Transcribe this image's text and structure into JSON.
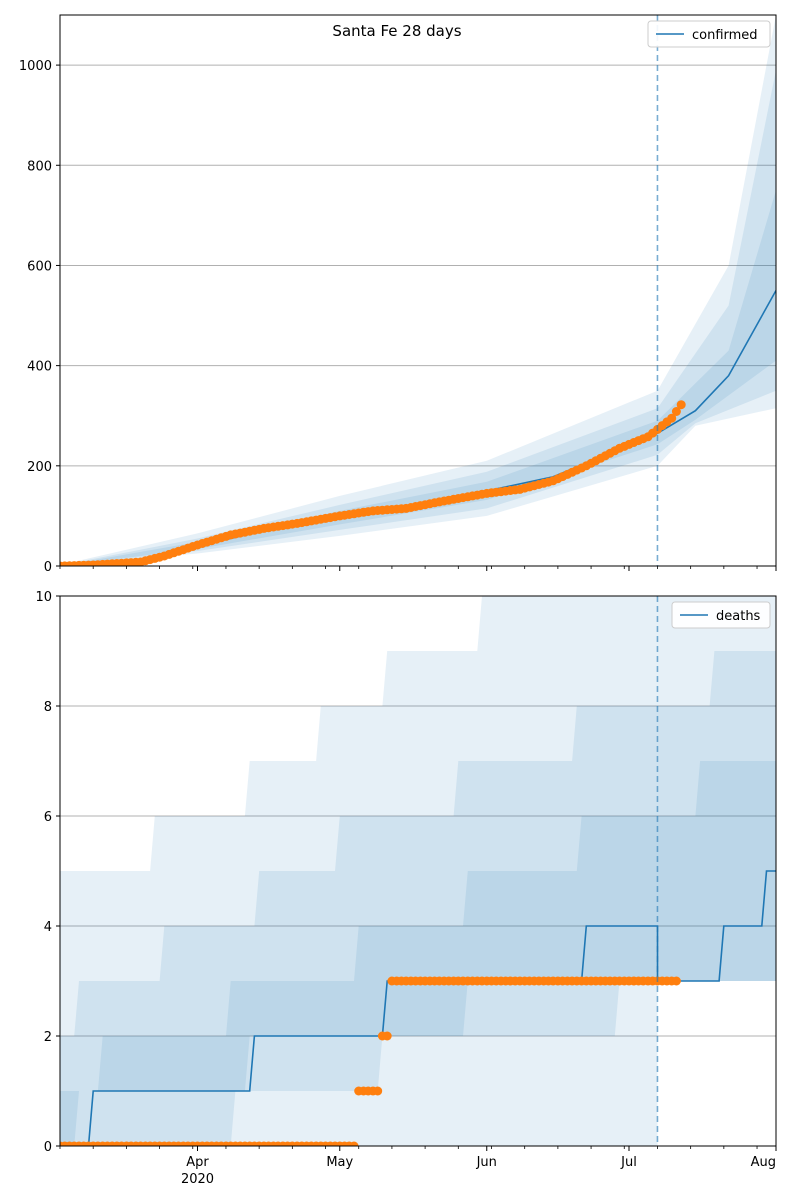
{
  "figure": {
    "title": "Santa Fe 28 days"
  },
  "chart_data": [
    {
      "type": "line",
      "title": "Santa Fe 28 days",
      "xlabel": "",
      "ylabel": "",
      "ylim": [
        0,
        1100
      ],
      "yticks": [
        0,
        200,
        400,
        600,
        800,
        1000
      ],
      "x_range": [
        "2020-03-03",
        "2020-08-01"
      ],
      "forecast_start": "2020-07-07",
      "xticks": [
        {
          "date": "2020-04-01",
          "label": "Apr",
          "year": "2020"
        },
        {
          "date": "2020-05-01",
          "label": "May"
        },
        {
          "date": "2020-06-01",
          "label": "Jun"
        },
        {
          "date": "2020-07-01",
          "label": "Jul"
        },
        {
          "date": "2020-08-01",
          "label": "Aug"
        }
      ],
      "grid": "horizontal",
      "legend": {
        "position": "top-right",
        "entries": [
          "confirmed"
        ]
      },
      "series": [
        {
          "name": "confirmed",
          "role": "median",
          "color": "#1f77b4",
          "points": [
            [
              "2020-03-03",
              0
            ],
            [
              "2020-03-10",
              3
            ],
            [
              "2020-03-20",
              12
            ],
            [
              "2020-04-01",
              40
            ],
            [
              "2020-04-15",
              70
            ],
            [
              "2020-05-01",
              95
            ],
            [
              "2020-05-15",
              115
            ],
            [
              "2020-06-01",
              150
            ],
            [
              "2020-06-15",
              178
            ],
            [
              "2020-07-01",
              240
            ],
            [
              "2020-07-07",
              265
            ],
            [
              "2020-07-15",
              310
            ],
            [
              "2020-07-22",
              380
            ],
            [
              "2020-08-01",
              550
            ]
          ]
        },
        {
          "name": "",
          "role": "observed",
          "color": "#ff7f0e",
          "points": [
            [
              "2020-03-03",
              0
            ],
            [
              "2020-03-10",
              2
            ],
            [
              "2020-03-20",
              8
            ],
            [
              "2020-03-25",
              20
            ],
            [
              "2020-04-01",
              42
            ],
            [
              "2020-04-08",
              62
            ],
            [
              "2020-04-15",
              75
            ],
            [
              "2020-04-22",
              85
            ],
            [
              "2020-05-01",
              100
            ],
            [
              "2020-05-08",
              110
            ],
            [
              "2020-05-15",
              115
            ],
            [
              "2020-05-22",
              128
            ],
            [
              "2020-06-01",
              145
            ],
            [
              "2020-06-08",
              153
            ],
            [
              "2020-06-15",
              170
            ],
            [
              "2020-06-22",
              200
            ],
            [
              "2020-06-29",
              235
            ],
            [
              "2020-07-05",
              258
            ],
            [
              "2020-07-10",
              295
            ],
            [
              "2020-07-12",
              322
            ]
          ]
        }
      ],
      "bands": [
        {
          "level": "outer",
          "color": "#1f77b4",
          "opacity": 0.11,
          "lower": [
            [
              "2020-03-03",
              0
            ],
            [
              "2020-04-01",
              25
            ],
            [
              "2020-05-01",
              60
            ],
            [
              "2020-06-01",
              100
            ],
            [
              "2020-07-07",
              200
            ],
            [
              "2020-07-15",
              280
            ],
            [
              "2020-08-01",
              315
            ]
          ],
          "upper": [
            [
              "2020-03-03",
              2
            ],
            [
              "2020-04-01",
              65
            ],
            [
              "2020-05-01",
              140
            ],
            [
              "2020-06-01",
              210
            ],
            [
              "2020-07-07",
              350
            ],
            [
              "2020-07-22",
              600
            ],
            [
              "2020-08-01",
              1100
            ]
          ]
        },
        {
          "level": "middle",
          "color": "#1f77b4",
          "opacity": 0.11,
          "lower": [
            [
              "2020-03-03",
              0
            ],
            [
              "2020-04-01",
              30
            ],
            [
              "2020-05-01",
              72
            ],
            [
              "2020-06-01",
              115
            ],
            [
              "2020-07-07",
              222
            ],
            [
              "2020-07-15",
              285
            ],
            [
              "2020-08-01",
              350
            ]
          ],
          "upper": [
            [
              "2020-03-03",
              1
            ],
            [
              "2020-04-01",
              55
            ],
            [
              "2020-05-01",
              122
            ],
            [
              "2020-06-01",
              188
            ],
            [
              "2020-07-07",
              315
            ],
            [
              "2020-07-22",
              520
            ],
            [
              "2020-08-01",
              990
            ]
          ]
        },
        {
          "level": "inner",
          "color": "#1f77b4",
          "opacity": 0.11,
          "lower": [
            [
              "2020-03-03",
              0
            ],
            [
              "2020-04-01",
              34
            ],
            [
              "2020-05-01",
              83
            ],
            [
              "2020-06-01",
              132
            ],
            [
              "2020-07-07",
              243
            ],
            [
              "2020-07-15",
              292
            ],
            [
              "2020-08-01",
              410
            ]
          ],
          "upper": [
            [
              "2020-03-03",
              0
            ],
            [
              "2020-04-01",
              48
            ],
            [
              "2020-05-01",
              110
            ],
            [
              "2020-06-01",
              168
            ],
            [
              "2020-07-07",
              290
            ],
            [
              "2020-07-22",
              430
            ],
            [
              "2020-08-01",
              750
            ]
          ]
        }
      ]
    },
    {
      "type": "line",
      "title": "",
      "xlabel": "",
      "ylabel": "",
      "ylim": [
        0,
        10
      ],
      "yticks": [
        0,
        2,
        4,
        6,
        8,
        10
      ],
      "x_range": [
        "2020-03-03",
        "2020-08-01"
      ],
      "forecast_start": "2020-07-07",
      "xticks": [
        {
          "date": "2020-04-01",
          "label": "Apr",
          "year": "2020"
        },
        {
          "date": "2020-05-01",
          "label": "May"
        },
        {
          "date": "2020-06-01",
          "label": "Jun"
        },
        {
          "date": "2020-07-01",
          "label": "Jul"
        },
        {
          "date": "2020-08-01",
          "label": "Aug"
        }
      ],
      "grid": "horizontal",
      "legend": {
        "position": "top-right",
        "entries": [
          "deaths"
        ]
      },
      "series": [
        {
          "name": "deaths",
          "role": "median",
          "step": true,
          "color": "#1f77b4",
          "points": [
            [
              "2020-03-03",
              0
            ],
            [
              "2020-03-09",
              0
            ],
            [
              "2020-03-10",
              1
            ],
            [
              "2020-04-12",
              1
            ],
            [
              "2020-04-13",
              2
            ],
            [
              "2020-05-10",
              2
            ],
            [
              "2020-05-11",
              3
            ],
            [
              "2020-06-21",
              3
            ],
            [
              "2020-06-22",
              4
            ],
            [
              "2020-07-07",
              4
            ],
            [
              "2020-07-07",
              3
            ],
            [
              "2020-07-20",
              3
            ],
            [
              "2020-07-21",
              4
            ],
            [
              "2020-07-29",
              4
            ],
            [
              "2020-07-30",
              5
            ],
            [
              "2020-08-01",
              5
            ]
          ]
        },
        {
          "name": "",
          "role": "observed",
          "color": "#ff7f0e",
          "points": [
            [
              "2020-03-03",
              0
            ],
            [
              "2020-03-10",
              0
            ],
            [
              "2020-03-17",
              0
            ],
            [
              "2020-03-24",
              0
            ],
            [
              "2020-03-31",
              0
            ],
            [
              "2020-04-07",
              0
            ],
            [
              "2020-04-14",
              0
            ],
            [
              "2020-04-21",
              0
            ],
            [
              "2020-04-28",
              0
            ],
            [
              "2020-05-04",
              0
            ],
            [
              "2020-05-05",
              1
            ],
            [
              "2020-05-07",
              1
            ],
            [
              "2020-05-09",
              1
            ],
            [
              "2020-05-10",
              2
            ],
            [
              "2020-05-11",
              2
            ],
            [
              "2020-05-12",
              3
            ],
            [
              "2020-05-19",
              3
            ],
            [
              "2020-05-26",
              3
            ],
            [
              "2020-06-02",
              3
            ],
            [
              "2020-06-09",
              3
            ],
            [
              "2020-06-16",
              3
            ],
            [
              "2020-06-23",
              3
            ],
            [
              "2020-06-30",
              3
            ],
            [
              "2020-07-07",
              3
            ],
            [
              "2020-07-11",
              3
            ]
          ]
        }
      ],
      "bands": [
        {
          "level": "outer",
          "color": "#1f77b4",
          "opacity": 0.11,
          "lower": [
            [
              "2020-03-03",
              0
            ],
            [
              "2020-07-07",
              0
            ],
            [
              "2020-07-07",
              3
            ],
            [
              "2020-08-01",
              3
            ]
          ],
          "upper": [
            [
              "2020-03-03",
              5
            ],
            [
              "2020-03-22",
              5
            ],
            [
              "2020-03-23",
              6
            ],
            [
              "2020-04-11",
              6
            ],
            [
              "2020-04-12",
              7
            ],
            [
              "2020-04-26",
              7
            ],
            [
              "2020-04-27",
              8
            ],
            [
              "2020-05-10",
              8
            ],
            [
              "2020-05-11",
              9
            ],
            [
              "2020-05-30",
              9
            ],
            [
              "2020-05-31",
              10
            ],
            [
              "2020-08-01",
              10
            ]
          ]
        },
        {
          "level": "middle",
          "color": "#1f77b4",
          "opacity": 0.11,
          "lower": [
            [
              "2020-03-03",
              0
            ],
            [
              "2020-04-08",
              0
            ],
            [
              "2020-04-09",
              1
            ],
            [
              "2020-05-09",
              1
            ],
            [
              "2020-05-10",
              2
            ],
            [
              "2020-06-28",
              2
            ],
            [
              "2020-06-29",
              3
            ],
            [
              "2020-07-07",
              3
            ],
            [
              "2020-08-01",
              3
            ]
          ],
          "upper": [
            [
              "2020-03-03",
              2
            ],
            [
              "2020-03-06",
              2
            ],
            [
              "2020-03-07",
              3
            ],
            [
              "2020-03-24",
              3
            ],
            [
              "2020-03-25",
              4
            ],
            [
              "2020-04-13",
              4
            ],
            [
              "2020-04-14",
              5
            ],
            [
              "2020-04-30",
              5
            ],
            [
              "2020-05-01",
              6
            ],
            [
              "2020-05-25",
              6
            ],
            [
              "2020-05-26",
              7
            ],
            [
              "2020-06-19",
              7
            ],
            [
              "2020-06-20",
              8
            ],
            [
              "2020-07-07",
              8
            ],
            [
              "2020-07-18",
              8
            ],
            [
              "2020-07-19",
              9
            ],
            [
              "2020-08-01",
              9
            ]
          ]
        },
        {
          "level": "inner",
          "color": "#1f77b4",
          "opacity": 0.11,
          "lower": [
            [
              "2020-03-03",
              0
            ],
            [
              "2020-03-06",
              0
            ],
            [
              "2020-03-07",
              1
            ],
            [
              "2020-04-11",
              1
            ],
            [
              "2020-04-12",
              2
            ],
            [
              "2020-05-27",
              2
            ],
            [
              "2020-05-28",
              3
            ],
            [
              "2020-07-07",
              3
            ],
            [
              "2020-08-01",
              3
            ]
          ],
          "upper": [
            [
              "2020-03-03",
              1
            ],
            [
              "2020-03-11",
              1
            ],
            [
              "2020-03-12",
              2
            ],
            [
              "2020-04-07",
              2
            ],
            [
              "2020-04-08",
              3
            ],
            [
              "2020-05-04",
              3
            ],
            [
              "2020-05-05",
              4
            ],
            [
              "2020-05-27",
              4
            ],
            [
              "2020-05-28",
              5
            ],
            [
              "2020-06-20",
              5
            ],
            [
              "2020-06-21",
              6
            ],
            [
              "2020-07-07",
              6
            ],
            [
              "2020-07-15",
              6
            ],
            [
              "2020-07-16",
              7
            ],
            [
              "2020-08-01",
              7
            ]
          ]
        }
      ]
    }
  ]
}
